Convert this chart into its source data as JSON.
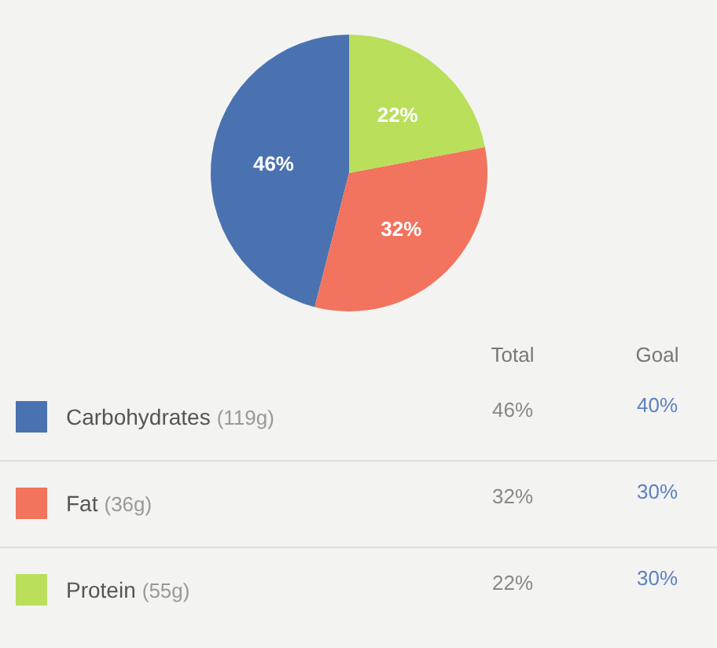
{
  "chart_data": {
    "type": "pie",
    "categories": [
      "Carbohydrates",
      "Fat",
      "Protein"
    ],
    "values": [
      46,
      32,
      22
    ],
    "colors": [
      "#4a72b0",
      "#f2735e",
      "#b9df5b"
    ],
    "value_labels": [
      "46%",
      "32%",
      "22%"
    ],
    "legend": "bottom",
    "annotations": [
      "Total",
      "Goal",
      "(119g)",
      "(36g)",
      "(55g)",
      "40%",
      "30%",
      "30%"
    ]
  }
}
